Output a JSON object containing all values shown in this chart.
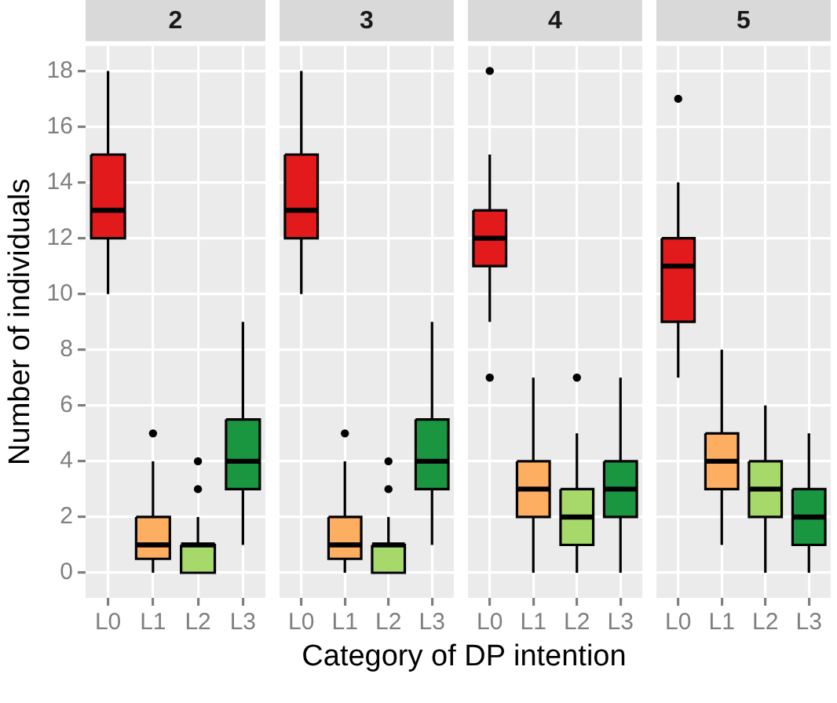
{
  "chart_data": [
    {
      "type": "box",
      "title": "2",
      "xlabel": "Category of DP intention",
      "ylabel": "Number of individuals",
      "categories": [
        "L0",
        "L1",
        "L2",
        "L3"
      ],
      "colors": [
        "#e31a1c",
        "#fdae61",
        "#a6d96a",
        "#1a9641"
      ],
      "boxes": [
        {
          "low": 10,
          "q1": 12,
          "median": 13,
          "q3": 15,
          "high": 18
        },
        {
          "low": 0,
          "q1": 0.5,
          "median": 1,
          "q3": 2,
          "high": 4,
          "outliers": [
            5
          ]
        },
        {
          "low": 0,
          "q1": 0,
          "median": 1,
          "q3": 1,
          "high": 2,
          "outliers": [
            3,
            4
          ]
        },
        {
          "low": 1,
          "q1": 3,
          "median": 4,
          "q3": 5.5,
          "high": 9
        }
      ],
      "ylim": [
        -0.9,
        18.9
      ],
      "yticks": [
        0,
        2,
        4,
        6,
        8,
        10,
        12,
        14,
        16,
        18
      ],
      "grid": true
    },
    {
      "type": "box",
      "title": "3",
      "categories": [
        "L0",
        "L1",
        "L2",
        "L3"
      ],
      "colors": [
        "#e31a1c",
        "#fdae61",
        "#a6d96a",
        "#1a9641"
      ],
      "boxes": [
        {
          "low": 10,
          "q1": 12,
          "median": 13,
          "q3": 15,
          "high": 18
        },
        {
          "low": 0,
          "q1": 0.5,
          "median": 1,
          "q3": 2,
          "high": 4,
          "outliers": [
            5
          ]
        },
        {
          "low": 0,
          "q1": 0,
          "median": 1,
          "q3": 1,
          "high": 2,
          "outliers": [
            3,
            4
          ]
        },
        {
          "low": 1,
          "q1": 3,
          "median": 4,
          "q3": 5.5,
          "high": 9
        }
      ],
      "ylim": [
        -0.9,
        18.9
      ],
      "yticks": [
        0,
        2,
        4,
        6,
        8,
        10,
        12,
        14,
        16,
        18
      ],
      "grid": true,
      "tick_labels": "x"
    },
    {
      "type": "box",
      "title": "4",
      "categories": [
        "L0",
        "L1",
        "L2",
        "L3"
      ],
      "colors": [
        "#e31a1c",
        "#fdae61",
        "#a6d96a",
        "#1a9641"
      ],
      "boxes": [
        {
          "low": 9,
          "q1": 11,
          "median": 12,
          "q3": 13,
          "high": 15,
          "outliers": [
            18,
            7
          ]
        },
        {
          "low": 0,
          "q1": 2,
          "median": 3,
          "q3": 4,
          "high": 7
        },
        {
          "low": 0,
          "q1": 1,
          "median": 2,
          "q3": 3,
          "high": 5,
          "outliers": [
            7
          ]
        },
        {
          "low": 0,
          "q1": 2,
          "median": 3,
          "q3": 4,
          "high": 7
        }
      ],
      "ylim": [
        -0.9,
        18.9
      ],
      "yticks": [
        0,
        2,
        4,
        6,
        8,
        10,
        12,
        14,
        16,
        18
      ],
      "grid": true,
      "tick_labels": "x"
    },
    {
      "type": "box",
      "title": "5",
      "categories": [
        "L0",
        "L1",
        "L2",
        "L3"
      ],
      "colors": [
        "#e31a1c",
        "#fdae61",
        "#a6d96a",
        "#1a9641"
      ],
      "boxes": [
        {
          "low": 7,
          "q1": 9,
          "median": 11,
          "q3": 12,
          "high": 14,
          "outliers": [
            17
          ]
        },
        {
          "low": 1,
          "q1": 3,
          "median": 4,
          "q3": 5,
          "high": 8
        },
        {
          "low": 0,
          "q1": 2,
          "median": 3,
          "q3": 4,
          "high": 6
        },
        {
          "low": 0,
          "q1": 1,
          "median": 2,
          "q3": 3,
          "high": 5
        }
      ],
      "ylim": [
        -0.9,
        18.9
      ],
      "yticks": [
        0,
        2,
        4,
        6,
        8,
        10,
        12,
        14,
        16,
        18
      ],
      "grid": true,
      "tick_labels": "x"
    }
  ]
}
